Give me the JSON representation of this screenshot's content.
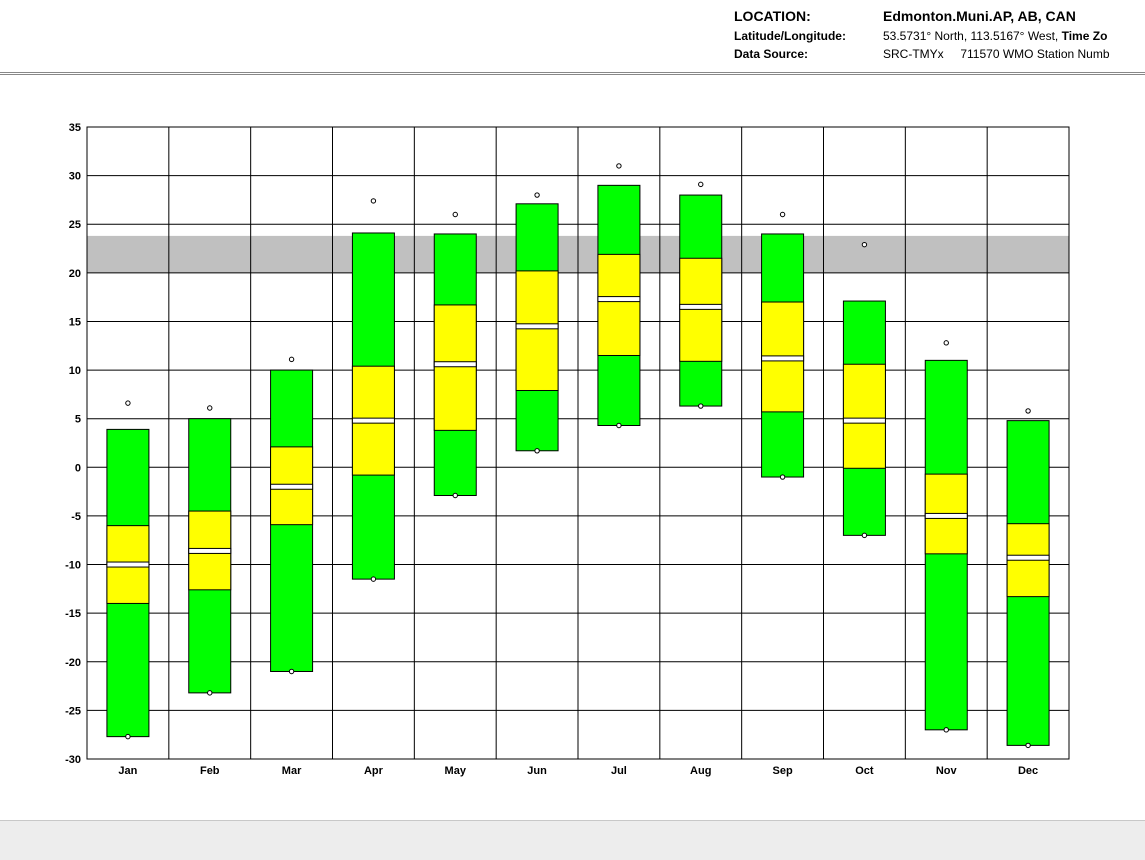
{
  "header": {
    "location_label": "LOCATION:",
    "location_value": "Edmonton.Muni.AP, AB, CAN",
    "latlon_label": "Latitude/Longitude:",
    "latlon_value": "53.5731° North, 113.5167° West,",
    "timezone_label": "Time Zo",
    "source_label": "Data Source:",
    "source_value": "SRC-TMYx",
    "station_value": "711570 WMO Station Numb"
  },
  "colors": {
    "outer": "#00ff00",
    "inner": "#ffff00",
    "comfort": "#c0c0c0",
    "grid": "#000000"
  },
  "chart_data": {
    "type": "box",
    "title": "",
    "xlabel": "",
    "ylabel": "",
    "ylim": [
      -30,
      35
    ],
    "yticks": [
      35,
      30,
      25,
      20,
      15,
      10,
      5,
      0,
      -5,
      -10,
      -15,
      -20,
      -25,
      -30
    ],
    "comfort_band": [
      20,
      23.8
    ],
    "categories": [
      "Jan",
      "Feb",
      "Mar",
      "Apr",
      "May",
      "Jun",
      "Jul",
      "Aug",
      "Sep",
      "Oct",
      "Nov",
      "Dec"
    ],
    "series": [
      {
        "month": "Jan",
        "min": -27.7,
        "q1": -14.0,
        "mean": -10.0,
        "q3": -6.0,
        "max": 3.9,
        "rec_high": 6.6,
        "rec_low": -27.7
      },
      {
        "month": "Feb",
        "min": -23.2,
        "q1": -12.6,
        "mean": -8.6,
        "q3": -4.5,
        "max": 5.0,
        "rec_high": 6.1,
        "rec_low": -23.2
      },
      {
        "month": "Mar",
        "min": -21.0,
        "q1": -5.9,
        "mean": -2.0,
        "q3": 2.1,
        "max": 10.0,
        "rec_high": 11.1,
        "rec_low": -21.0
      },
      {
        "month": "Apr",
        "min": -11.5,
        "q1": -0.8,
        "mean": 4.8,
        "q3": 10.4,
        "max": 24.1,
        "rec_high": 27.4,
        "rec_low": -11.5
      },
      {
        "month": "May",
        "min": -2.9,
        "q1": 3.8,
        "mean": 10.6,
        "q3": 16.7,
        "max": 24.0,
        "rec_high": 26.0,
        "rec_low": -2.9
      },
      {
        "month": "Jun",
        "min": 1.7,
        "q1": 7.9,
        "mean": 14.5,
        "q3": 20.2,
        "max": 27.1,
        "rec_high": 28.0,
        "rec_low": 1.7
      },
      {
        "month": "Jul",
        "min": 4.3,
        "q1": 11.5,
        "mean": 17.3,
        "q3": 21.9,
        "max": 29.0,
        "rec_high": 31.0,
        "rec_low": 4.3
      },
      {
        "month": "Aug",
        "min": 6.3,
        "q1": 10.9,
        "mean": 16.5,
        "q3": 21.5,
        "max": 28.0,
        "rec_high": 29.1,
        "rec_low": 6.3
      },
      {
        "month": "Sep",
        "min": -1.0,
        "q1": 5.7,
        "mean": 11.2,
        "q3": 17.0,
        "max": 24.0,
        "rec_high": 26.0,
        "rec_low": -1.0
      },
      {
        "month": "Oct",
        "min": -7.0,
        "q1": -0.1,
        "mean": 4.8,
        "q3": 10.6,
        "max": 17.1,
        "rec_high": 22.9,
        "rec_low": -7.0
      },
      {
        "month": "Nov",
        "min": -27.0,
        "q1": -8.9,
        "mean": -5.0,
        "q3": -0.7,
        "max": 11.0,
        "rec_high": 12.8,
        "rec_low": -27.0
      },
      {
        "month": "Dec",
        "min": -28.6,
        "q1": -13.3,
        "mean": -9.3,
        "q3": -5.8,
        "max": 4.8,
        "rec_high": 5.8,
        "rec_low": -28.6
      }
    ]
  }
}
